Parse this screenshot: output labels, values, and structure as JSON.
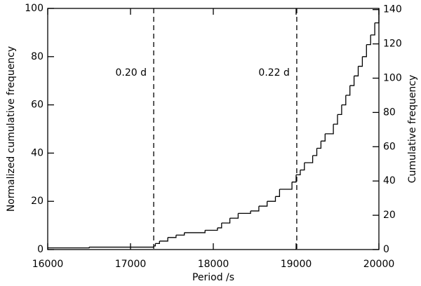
{
  "chart_data": {
    "type": "step",
    "x_label": "Period /s",
    "y_label": "Normalized cumulative frequency",
    "y2_label": "Cumulative frequency",
    "x": [
      16000,
      16500,
      17280,
      17300,
      17350,
      17450,
      17550,
      17650,
      17900,
      18050,
      18100,
      18200,
      18300,
      18450,
      18550,
      18650,
      18750,
      18800,
      18950,
      19000,
      19050,
      19100,
      19200,
      19250,
      19300,
      19350,
      19450,
      19500,
      19550,
      19600,
      19650,
      19700,
      19750,
      19800,
      19850,
      19900,
      19950,
      20000
    ],
    "series": [
      {
        "color": "#000000",
        "values": [
          0.7,
          1,
          1.5,
          2.5,
          3.5,
          5,
          6,
          7,
          8,
          9,
          11,
          13,
          15,
          16,
          18,
          20,
          22,
          25,
          28,
          31,
          33,
          36,
          39,
          42,
          45,
          48,
          52,
          56,
          60,
          64,
          68,
          72,
          76,
          80,
          85,
          89,
          94,
          100
        ]
      }
    ],
    "vlines": [
      17280,
      19008
    ],
    "annotations": [
      "0.20 d",
      "0.22 d"
    ],
    "xlim": [
      16000,
      20000
    ],
    "xticks": [
      16000,
      17000,
      18000,
      19000,
      20000
    ],
    "ylim": [
      0,
      100
    ],
    "yticks": [
      0,
      20,
      40,
      60,
      80,
      100
    ],
    "y2lim": [
      0,
      140.7
    ],
    "y2ticks": [
      0,
      20,
      40,
      60,
      80,
      100,
      120,
      140
    ]
  }
}
